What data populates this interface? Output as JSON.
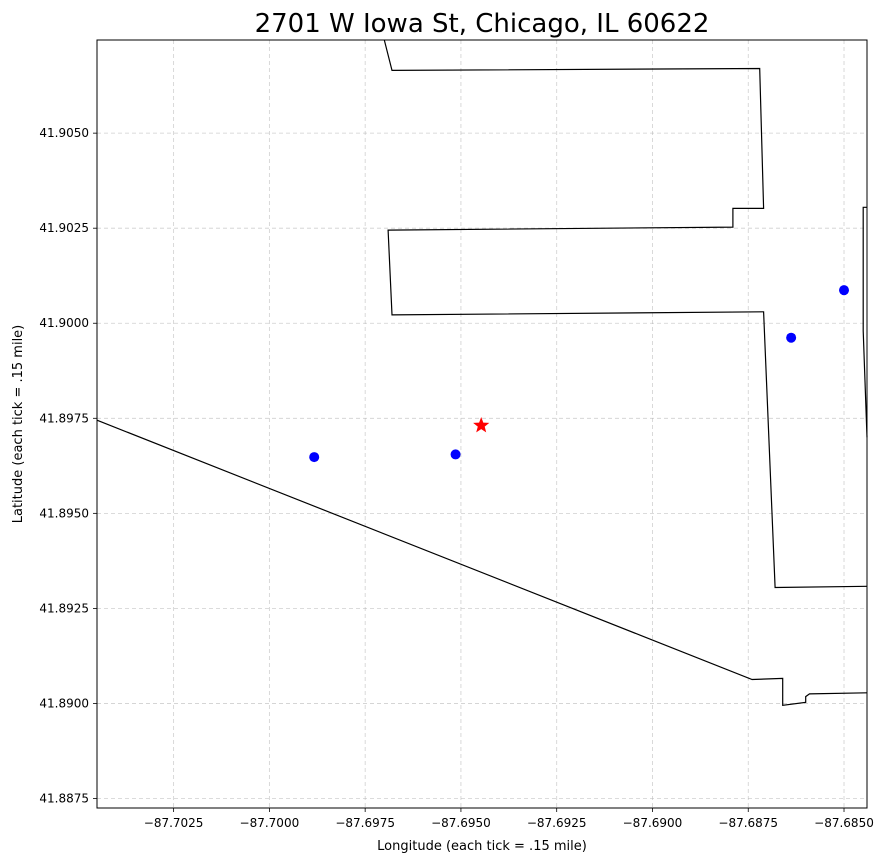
{
  "map": {
    "title": "2701 W Iowa St, Chicago, IL 60622",
    "xlabel": "Longitude (each tick = .15 mile)",
    "ylabel": "Latitude (each tick = .15 mile)"
  },
  "chart_data": {
    "type": "scatter",
    "title": "2701 W Iowa St, Chicago, IL 60622",
    "xlabel": "Longitude (each tick = .15 mile)",
    "ylabel": "Latitude (each tick = .15 mile)",
    "xlim": [
      -87.7045,
      -87.6844
    ],
    "ylim": [
      41.88725,
      41.90745
    ],
    "grid": true,
    "x_ticks": [
      {
        "value": -87.7025,
        "label": "−87.7025"
      },
      {
        "value": -87.7,
        "label": "−87.7000"
      },
      {
        "value": -87.6975,
        "label": "−87.6975"
      },
      {
        "value": -87.695,
        "label": "−87.6950"
      },
      {
        "value": -87.6925,
        "label": "−87.6925"
      },
      {
        "value": -87.69,
        "label": "−87.6900"
      },
      {
        "value": -87.6875,
        "label": "−87.6875"
      },
      {
        "value": -87.685,
        "label": "−87.6850"
      }
    ],
    "y_ticks": [
      {
        "value": 41.8875,
        "label": "41.8875"
      },
      {
        "value": 41.89,
        "label": "41.8900"
      },
      {
        "value": 41.8925,
        "label": "41.8925"
      },
      {
        "value": 41.895,
        "label": "41.8950"
      },
      {
        "value": 41.8975,
        "label": "41.8975"
      },
      {
        "value": 41.9,
        "label": "41.9000"
      },
      {
        "value": 41.9025,
        "label": "41.9025"
      },
      {
        "value": 41.905,
        "label": "41.9050"
      }
    ],
    "target": {
      "x": -87.69447,
      "y": 41.89731,
      "marker": "star",
      "color": "#ff0000"
    },
    "points": [
      {
        "x": -87.69883,
        "y": 41.89648,
        "color": "#0000ff"
      },
      {
        "x": -87.69514,
        "y": 41.89655,
        "color": "#0000ff"
      },
      {
        "x": -87.68638,
        "y": 41.89962,
        "color": "#0000ff"
      },
      {
        "x": -87.685,
        "y": 41.90087,
        "color": "#0000ff"
      }
    ],
    "boundaries": [
      {
        "name": "north-block",
        "color": "#000000",
        "points": [
          [
            -87.697,
            41.90745
          ],
          [
            -87.6968,
            41.90665
          ],
          [
            -87.6872,
            41.9067
          ],
          [
            -87.6871,
            41.90302
          ],
          [
            -87.6879,
            41.90302
          ],
          [
            -87.6879,
            41.90253
          ],
          [
            -87.6969,
            41.90245
          ],
          [
            -87.6968,
            41.90022
          ],
          [
            -87.6871,
            41.9003
          ],
          [
            -87.6868,
            41.89305
          ],
          [
            -87.6844,
            41.89308
          ]
        ]
      },
      {
        "name": "diagonal-boundary",
        "color": "#000000",
        "points": [
          [
            -87.7045,
            41.89745
          ],
          [
            -87.6874,
            41.89063
          ],
          [
            -87.6866,
            41.89066
          ],
          [
            -87.6866,
            41.88995
          ],
          [
            -87.686,
            41.89003
          ],
          [
            -87.686,
            41.89018
          ],
          [
            -87.6859,
            41.89025
          ],
          [
            -87.6844,
            41.89028
          ]
        ]
      },
      {
        "name": "east-edge",
        "color": "#000000",
        "points": [
          [
            -87.6844,
            41.90305
          ],
          [
            -87.6845,
            41.90305
          ],
          [
            -87.6845,
            41.8998
          ],
          [
            -87.6844,
            41.897
          ]
        ]
      }
    ]
  }
}
